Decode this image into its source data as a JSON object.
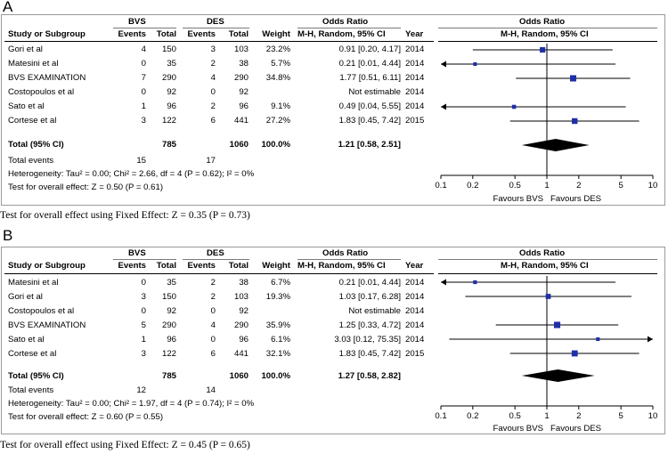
{
  "panels": [
    {
      "letter": "A",
      "caption": "Test for overall effect using Fixed Effect: Z = 0.35 (P = 0.73)",
      "header": {
        "bvs": "BVS",
        "des": "DES",
        "or_group": "Odds Ratio",
        "or_plot": "Odds Ratio",
        "study": "Study or Subgroup",
        "events1": "Events",
        "total1": "Total",
        "events2": "Events",
        "total2": "Total",
        "weight": "Weight",
        "method": "M-H, Random, 95% CI",
        "year": "Year",
        "method_plot": "M-H, Random, 95% CI"
      },
      "rows": [
        {
          "study": "Gori et al",
          "e1": "4",
          "t1": "150",
          "e2": "3",
          "t2": "103",
          "w": "23.2%",
          "ci": "0.91 [0.20, 4.17]",
          "year": "2014"
        },
        {
          "study": "Matesini et al",
          "e1": "0",
          "t1": "35",
          "e2": "2",
          "t2": "38",
          "w": "5.7%",
          "ci": "0.21 [0.01, 4.44]",
          "year": "2014"
        },
        {
          "study": "BVS EXAMINATION",
          "e1": "7",
          "t1": "290",
          "e2": "4",
          "t2": "290",
          "w": "34.8%",
          "ci": "1.77 [0.51, 6.11]",
          "year": "2014"
        },
        {
          "study": "Costopoulos et al",
          "e1": "0",
          "t1": "92",
          "e2": "0",
          "t2": "92",
          "w": "",
          "ci": "Not estimable",
          "year": "2014"
        },
        {
          "study": "Sato et al",
          "e1": "1",
          "t1": "96",
          "e2": "2",
          "t2": "96",
          "w": "9.1%",
          "ci": "0.49 [0.04, 5.55]",
          "year": "2014"
        },
        {
          "study": "Cortese et al",
          "e1": "3",
          "t1": "122",
          "e2": "6",
          "t2": "441",
          "w": "27.2%",
          "ci": "1.83 [0.45, 7.42]",
          "year": "2015"
        }
      ],
      "total": {
        "label": "Total (95% CI)",
        "t1": "785",
        "t2": "1060",
        "w": "100.0%",
        "ci": "1.21 [0.58, 2.51]"
      },
      "events": {
        "label": "Total events",
        "e1": "15",
        "e2": "17"
      },
      "heterogeneity": "Heterogeneity: Tau² = 0.00; Chi² = 2.66, df = 4 (P = 0.62); I² = 0%",
      "overall": "Test for overall effect: Z = 0.50 (P = 0.61)",
      "favours_left": "Favours BVS",
      "favours_right": "Favours DES"
    },
    {
      "letter": "B",
      "caption": "Test for overall effect using Fixed Effect: Z = 0.45 (P = 0.65)",
      "header": {
        "bvs": "BVS",
        "des": "DES",
        "or_group": "Odds Ratio",
        "or_plot": "Odds Ratio",
        "study": "Study or Subgroup",
        "events1": "Events",
        "total1": "Total",
        "events2": "Events",
        "total2": "Total",
        "weight": "Weight",
        "method": "M-H, Random, 95% CI",
        "year": "Year",
        "method_plot": "M-H, Random, 95% CI"
      },
      "rows": [
        {
          "study": "Matesini et al",
          "e1": "0",
          "t1": "35",
          "e2": "2",
          "t2": "38",
          "w": "6.7%",
          "ci": "0.21 [0.01, 4.44]",
          "year": "2014"
        },
        {
          "study": "Gori et al",
          "e1": "3",
          "t1": "150",
          "e2": "2",
          "t2": "103",
          "w": "19.3%",
          "ci": "1.03 [0.17, 6.28]",
          "year": "2014"
        },
        {
          "study": "Costopoulos et al",
          "e1": "0",
          "t1": "92",
          "e2": "0",
          "t2": "92",
          "w": "",
          "ci": "Not estimable",
          "year": "2014"
        },
        {
          "study": "BVS EXAMINATION",
          "e1": "5",
          "t1": "290",
          "e2": "4",
          "t2": "290",
          "w": "35.9%",
          "ci": "1.25 [0.33, 4.72]",
          "year": "2014"
        },
        {
          "study": "Sato et al",
          "e1": "1",
          "t1": "96",
          "e2": "0",
          "t2": "96",
          "w": "6.1%",
          "ci": "3.03 [0.12, 75.35]",
          "year": "2014"
        },
        {
          "study": "Cortese et al",
          "e1": "3",
          "t1": "122",
          "e2": "6",
          "t2": "441",
          "w": "32.1%",
          "ci": "1.83 [0.45, 7.42]",
          "year": "2015"
        }
      ],
      "total": {
        "label": "Total (95% CI)",
        "t1": "785",
        "t2": "1060",
        "w": "100.0%",
        "ci": "1.27 [0.58, 2.82]"
      },
      "events": {
        "label": "Total events",
        "e1": "12",
        "e2": "14"
      },
      "heterogeneity": "Heterogeneity: Tau² = 0.00; Chi² = 1.97, df = 4 (P = 0.74); I² = 0%",
      "overall": "Test for overall effect: Z = 0.60 (P = 0.55)",
      "favours_left": "Favours BVS",
      "favours_right": "Favours DES"
    }
  ],
  "chart_data": [
    {
      "type": "forest",
      "title": "Odds Ratio M-H, Random, 95% CI",
      "x_scale": "log",
      "xlim": [
        0.1,
        10
      ],
      "ticks": [
        0.1,
        0.2,
        0.5,
        1,
        2,
        5,
        10
      ],
      "tick_labels": [
        "0.1",
        "0.2",
        "0.5",
        "1",
        "2",
        "5",
        "10"
      ],
      "studies": [
        {
          "name": "Gori et al",
          "or": 0.91,
          "lo": 0.2,
          "hi": 4.17,
          "weight": 23.2
        },
        {
          "name": "Matesini et al",
          "or": 0.21,
          "lo": 0.01,
          "hi": 4.44,
          "weight": 5.7
        },
        {
          "name": "BVS EXAMINATION",
          "or": 1.77,
          "lo": 0.51,
          "hi": 6.11,
          "weight": 34.8
        },
        {
          "name": "Costopoulos et al",
          "or": null,
          "lo": null,
          "hi": null,
          "weight": null
        },
        {
          "name": "Sato et al",
          "or": 0.49,
          "lo": 0.04,
          "hi": 5.55,
          "weight": 9.1
        },
        {
          "name": "Cortese et al",
          "or": 1.83,
          "lo": 0.45,
          "hi": 7.42,
          "weight": 27.2
        }
      ],
      "pooled": {
        "or": 1.21,
        "lo": 0.58,
        "hi": 2.51
      },
      "xlabel_left": "Favours BVS",
      "xlabel_right": "Favours DES"
    },
    {
      "type": "forest",
      "title": "Odds Ratio M-H, Random, 95% CI",
      "x_scale": "log",
      "xlim": [
        0.1,
        10
      ],
      "ticks": [
        0.1,
        0.2,
        0.5,
        1,
        2,
        5,
        10
      ],
      "tick_labels": [
        "0.1",
        "0.2",
        "0.5",
        "1",
        "2",
        "5",
        "10"
      ],
      "studies": [
        {
          "name": "Matesini et al",
          "or": 0.21,
          "lo": 0.01,
          "hi": 4.44,
          "weight": 6.7
        },
        {
          "name": "Gori et al",
          "or": 1.03,
          "lo": 0.17,
          "hi": 6.28,
          "weight": 19.3
        },
        {
          "name": "Costopoulos et al",
          "or": null,
          "lo": null,
          "hi": null,
          "weight": null
        },
        {
          "name": "BVS EXAMINATION",
          "or": 1.25,
          "lo": 0.33,
          "hi": 4.72,
          "weight": 35.9
        },
        {
          "name": "Sato et al",
          "or": 3.03,
          "lo": 0.12,
          "hi": 75.35,
          "weight": 6.1
        },
        {
          "name": "Cortese et al",
          "or": 1.83,
          "lo": 0.45,
          "hi": 7.42,
          "weight": 32.1
        }
      ],
      "pooled": {
        "or": 1.27,
        "lo": 0.58,
        "hi": 2.82
      },
      "xlabel_left": "Favours BVS",
      "xlabel_right": "Favours DES"
    }
  ]
}
